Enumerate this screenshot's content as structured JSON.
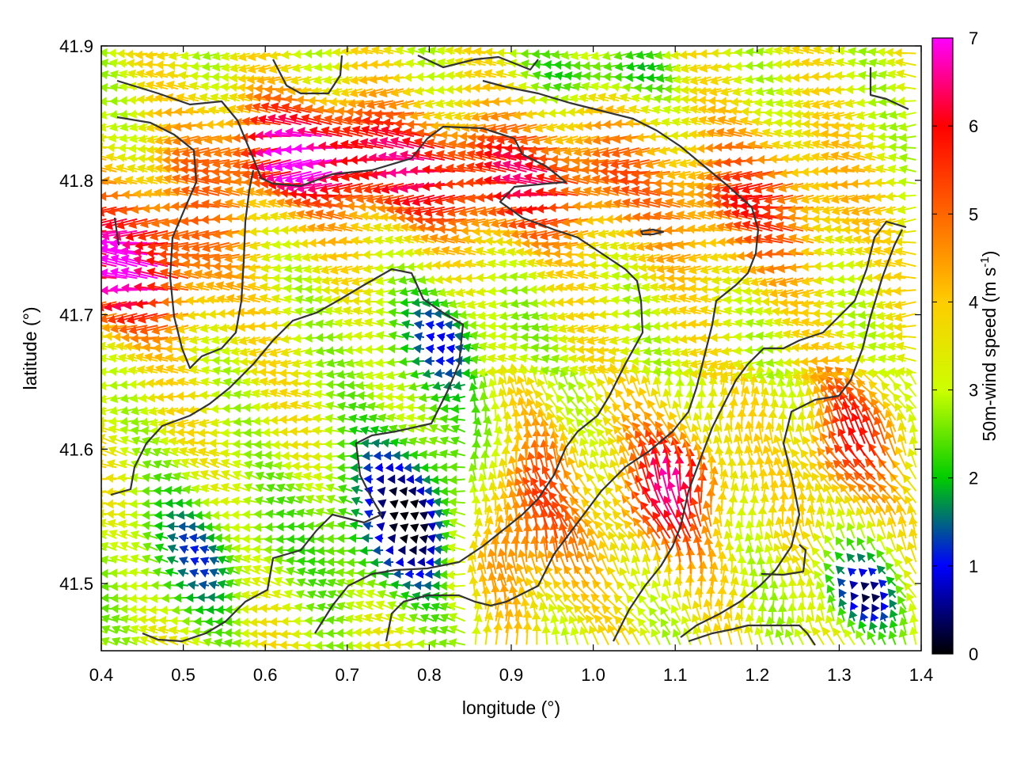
{
  "chart_data": {
    "type": "vector-field",
    "title": "",
    "xlabel": "longitude (°)",
    "ylabel": "latitude (°)",
    "xlim": [
      0.4,
      1.4
    ],
    "ylim": [
      41.45,
      41.9
    ],
    "x_ticks": [
      "0.4",
      "0.5",
      "0.6",
      "0.7",
      "0.8",
      "0.9",
      "1.0",
      "1.1",
      "1.2",
      "1.3",
      "1.4"
    ],
    "y_ticks": [
      "41.5",
      "41.6",
      "41.7",
      "41.8",
      "41.9"
    ],
    "colorbar": {
      "label_main": "50m-wind speed (m s",
      "label_sup": "-1",
      "label_end": ")",
      "range": [
        0,
        7
      ],
      "ticks": [
        "0",
        "1",
        "2",
        "3",
        "4",
        "5",
        "6",
        "7"
      ],
      "palette": [
        "#000000",
        "#0000ff",
        "#00cc00",
        "#ccff00",
        "#ffcc00",
        "#ff6600",
        "#ff0000",
        "#ff00ff"
      ]
    },
    "grid_spacing_deg": [
      0.0125,
      0.0088
    ],
    "wind_pattern": "predominantly westward flow; strong magenta jets in the north-west (~41.72-41.86°N, 0.4-0.65°E); weak blue/green calm zones near 0.6-0.85°E, 41.5-41.7°N; strong north-westward winds (red/magenta) in the south-east valleys (0.85-1.35°E, 41.45-41.65°N)",
    "contours_note": "dark grey terrain/coast contour lines overlay"
  }
}
